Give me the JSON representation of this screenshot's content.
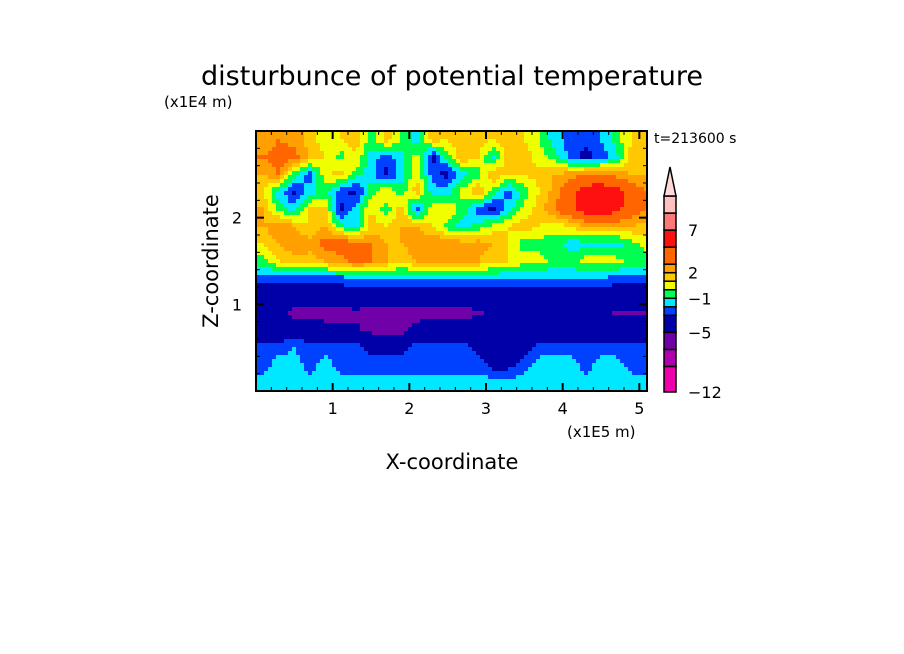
{
  "chart_data": {
    "type": "heatmap",
    "title": "disturbunce of potential temperature",
    "xlabel": "X-coordinate",
    "ylabel": "Z-coordinate",
    "x_unit": "(x1E5 m)",
    "y_unit": "(x1E4 m)",
    "annotation": "t=213600 s",
    "xlim": [
      0,
      5.1
    ],
    "ylim": [
      0,
      3.0
    ],
    "xticks": [
      1,
      2,
      3,
      4,
      5
    ],
    "yticks": [
      1,
      2
    ],
    "xtick_labels": [
      "1",
      "2",
      "3",
      "4",
      "5"
    ],
    "ytick_labels": [
      "1",
      "2"
    ],
    "grid": false,
    "colorbar": {
      "placement": "right",
      "levels": [
        -12,
        -9,
        -7,
        -5,
        -3,
        -2,
        -1,
        0,
        1,
        2,
        3,
        5,
        7,
        9,
        11
      ],
      "labels": [
        "7",
        "2",
        "-1",
        "-5",
        "-12"
      ],
      "label_values": [
        7,
        2,
        -1,
        -5,
        -12
      ],
      "colors": [
        "#ee00aa",
        "#b000b0",
        "#7000a8",
        "#0000a8",
        "#0040ff",
        "#00e8ff",
        "#00ff50",
        "#f0ff00",
        "#ffc800",
        "#ffa000",
        "#ff6600",
        "#ff1010",
        "#ff7878",
        "#ffc0c0"
      ],
      "over_color": "#ffd8d8",
      "extend": "max"
    },
    "x": [
      0.1,
      0.3,
      0.5,
      0.7,
      0.9,
      1.1,
      1.3,
      1.5,
      1.7,
      1.9,
      2.1,
      2.3,
      2.5,
      2.7,
      2.9,
      3.1,
      3.3,
      3.5,
      3.7,
      3.9,
      4.1,
      4.3,
      4.5,
      4.7,
      4.9,
      5.1
    ],
    "z": [
      2.9,
      2.7,
      2.5,
      2.3,
      2.1,
      1.9,
      1.7,
      1.5,
      1.3,
      1.1,
      0.9,
      0.7,
      0.5,
      0.3,
      0.1
    ],
    "values": [
      [
        2,
        3,
        2.5,
        1.5,
        0.5,
        1,
        1.5,
        -0.5,
        1.5,
        0,
        -1.5,
        1.5,
        1,
        2,
        1.5,
        1,
        1.5,
        1,
        0,
        -1.5,
        -2.5,
        -2.5,
        -2,
        -0.5,
        1,
        1.5
      ],
      [
        3,
        4,
        3.5,
        2,
        1,
        -0.5,
        1,
        -1.5,
        -2.5,
        -1.5,
        0.5,
        -3.5,
        -0.5,
        2,
        1,
        -1.5,
        2,
        1.5,
        0.5,
        -0.5,
        -2.5,
        -3.5,
        -2.5,
        -1.5,
        1.5,
        2
      ],
      [
        2,
        3,
        -0.5,
        -2.5,
        0.5,
        1.5,
        -0.5,
        -1.5,
        -3.5,
        -1.5,
        1,
        -2.5,
        -3.5,
        -1.5,
        -0.5,
        2,
        1,
        1,
        1.5,
        2,
        2.5,
        3,
        3,
        2.5,
        2,
        2
      ],
      [
        1,
        -1.5,
        -3.5,
        -1.5,
        -0.5,
        -2.5,
        -3.5,
        -0.5,
        1,
        -0.5,
        1.5,
        -1.5,
        -1.5,
        0.5,
        2,
        -0.5,
        -2.5,
        -0.5,
        1,
        2.5,
        4,
        6,
        6.5,
        6,
        4,
        3
      ],
      [
        2,
        -0.5,
        -1.5,
        1,
        1.5,
        -3.5,
        -1.5,
        1,
        -0.5,
        1.5,
        -2.5,
        0.5,
        1,
        -0.5,
        -2.5,
        -3.5,
        -1.5,
        0.5,
        1.5,
        3,
        4.5,
        6,
        6.5,
        5.5,
        4,
        3
      ],
      [
        2,
        3,
        2,
        1,
        2,
        -0.5,
        -1.5,
        1.5,
        1,
        2,
        2,
        1,
        -0.5,
        -1.5,
        -0.5,
        0.5,
        1,
        1.5,
        1,
        0.5,
        1,
        2,
        2,
        2,
        2,
        1.5
      ],
      [
        1,
        2,
        3,
        2.5,
        3.5,
        4,
        3.5,
        3,
        2,
        2,
        2.5,
        3,
        3,
        2.5,
        2.5,
        2,
        1,
        -0.5,
        -0.5,
        -0.5,
        -1.5,
        -1.5,
        -1.5,
        -1.5,
        -0.5,
        0.5
      ],
      [
        -0.5,
        1,
        1.5,
        1.5,
        2,
        2.5,
        3.5,
        3,
        2,
        1.5,
        2,
        2.5,
        2,
        2,
        2,
        1.5,
        1,
        0.5,
        0.5,
        -0.5,
        -0.5,
        0.5,
        0.5,
        0.5,
        -0.5,
        -0.5
      ],
      [
        -2.5,
        -2.5,
        -2.5,
        -2.5,
        -2.5,
        -2.5,
        -2,
        -2,
        -2,
        -2,
        -2,
        -2,
        -2,
        -2,
        -2,
        -2,
        -2,
        -2,
        -2,
        -2,
        -2,
        -2,
        -2,
        -2.5,
        -2.5,
        -2.5
      ],
      [
        -4,
        -4,
        -4,
        -4,
        -4,
        -4,
        -4,
        -4,
        -4,
        -4,
        -4,
        -4,
        -4,
        -4,
        -4,
        -4,
        -4,
        -4,
        -4,
        -4,
        -4,
        -4,
        -4,
        -4,
        -4,
        -4
      ],
      [
        -4.5,
        -4.5,
        -5.5,
        -5.5,
        -5.5,
        -5.5,
        -5.2,
        -5.5,
        -5.5,
        -5.5,
        -5.5,
        -5.5,
        -5.5,
        -5.5,
        -5.2,
        -4.8,
        -4.5,
        -4.5,
        -4.5,
        -4.5,
        -4.5,
        -4.5,
        -4.5,
        -5.2,
        -5.2,
        -5.2
      ],
      [
        -4,
        -4,
        -4,
        -4,
        -4.5,
        -4.5,
        -4.8,
        -5.3,
        -5.3,
        -5.3,
        -4.5,
        -4,
        -4,
        -4,
        -4,
        -4,
        -4,
        -4,
        -4,
        -4,
        -4,
        -4,
        -4,
        -4,
        -4,
        -4
      ],
      [
        -2.5,
        -2.5,
        -2,
        -2.5,
        -2.5,
        -2.5,
        -2.5,
        -3.5,
        -3.5,
        -3.5,
        -2.5,
        -2.5,
        -2.5,
        -2.5,
        -3.5,
        -3.5,
        -3.5,
        -3.5,
        -2.5,
        -2.5,
        -2.5,
        -2.5,
        -2.5,
        -2.5,
        -2.5,
        -2.5
      ],
      [
        -2.5,
        -1.5,
        -1.5,
        -2.5,
        -1.5,
        -2.5,
        -2.5,
        -2.5,
        -2.5,
        -2.5,
        -2.5,
        -2.5,
        -2.5,
        -2.5,
        -2.5,
        -3.5,
        -3.5,
        -2.5,
        -1.5,
        -1.5,
        -1.5,
        -2.5,
        -1.5,
        -1.5,
        -2.5,
        -2.5
      ],
      [
        -1.5,
        -1.5,
        -1.5,
        -1.5,
        -1.5,
        -1.5,
        -1.5,
        -1.5,
        -1.5,
        -1.5,
        -1.5,
        -1.5,
        -1.5,
        -1.5,
        -1.5,
        -1.5,
        -1.5,
        -1.5,
        -1.5,
        -1.5,
        -1.5,
        -1.5,
        -1.5,
        -1.5,
        -1.5,
        -1.5
      ]
    ]
  }
}
